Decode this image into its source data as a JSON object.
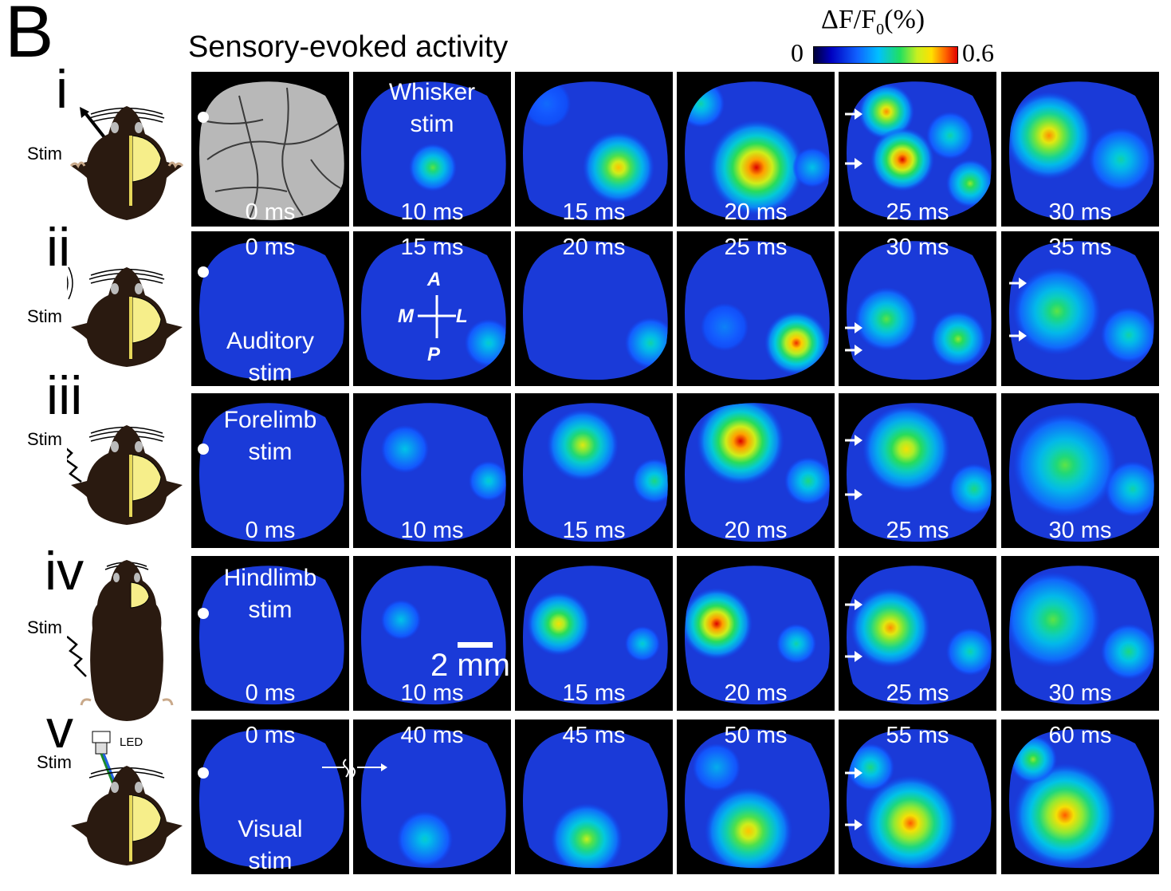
{
  "figure": {
    "panel_letter": "B",
    "title": "Sensory-evoked activity",
    "colorbar": {
      "title_main": "ΔF/F",
      "title_sub": "0",
      "title_unit": "(%)",
      "min": "0",
      "max": "0.6"
    },
    "scale_bar_label": "2 mm",
    "compass": {
      "anterior": "A",
      "posterior": "P",
      "medial": "M",
      "lateral": "L"
    }
  },
  "rows": [
    {
      "numeral": "i",
      "stim_label": "Stim",
      "name": "Whisker stim",
      "stim_text": [
        "Whisker",
        "stim"
      ],
      "frames": [
        "0 ms",
        "10 ms",
        "15 ms",
        "20 ms",
        "25 ms",
        "30 ms"
      ]
    },
    {
      "numeral": "ii",
      "stim_label": "Stim",
      "name": "Auditory stim",
      "stim_text": [
        "Auditory",
        "stim"
      ],
      "frames": [
        "0 ms",
        "15 ms",
        "20 ms",
        "25 ms",
        "30 ms",
        "35 ms"
      ]
    },
    {
      "numeral": "iii",
      "stim_label": "Stim",
      "name": "Forelimb stim",
      "stim_text": [
        "Forelimb",
        "stim"
      ],
      "frames": [
        "0 ms",
        "10 ms",
        "15 ms",
        "20 ms",
        "25 ms",
        "30 ms"
      ]
    },
    {
      "numeral": "iv",
      "stim_label": "Stim",
      "name": "Hindlimb stim",
      "stim_text": [
        "Hindlimb",
        "stim"
      ],
      "frames": [
        "0 ms",
        "10 ms",
        "15 ms",
        "20 ms",
        "25 ms",
        "30 ms"
      ]
    },
    {
      "numeral": "v",
      "stim_label": "Stim",
      "name": "Visual stim",
      "stim_text": [
        "Visual",
        "stim"
      ],
      "frames": [
        "0 ms",
        "40 ms",
        "45 ms",
        "50 ms",
        "55 ms",
        "60 ms"
      ],
      "led_label": "LED"
    }
  ]
}
